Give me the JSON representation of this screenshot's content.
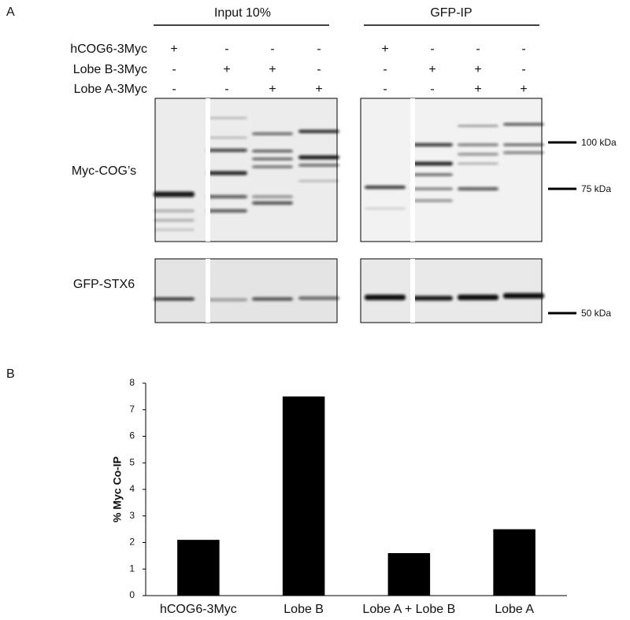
{
  "panel_a": {
    "label": "A",
    "groups": [
      "Input 10%",
      "GFP-IP"
    ],
    "rows": [
      {
        "label": "hCOG6-3Myc",
        "signs": [
          "+",
          "-",
          "-",
          "-",
          "+",
          "-",
          "-",
          "-"
        ]
      },
      {
        "label": "Lobe B-3Myc",
        "signs": [
          "-",
          "+",
          "+",
          "-",
          "-",
          "+",
          "+",
          "-"
        ]
      },
      {
        "label": "Lobe A-3Myc",
        "signs": [
          "-",
          "-",
          "+",
          "+",
          "-",
          "-",
          "+",
          "+"
        ]
      }
    ],
    "blots": [
      "Myc-COG’s",
      "GFP-STX6"
    ],
    "markers": [
      "100 kDa",
      "75 kDa",
      "50 kDa"
    ]
  },
  "panel_b_label": "B",
  "chart_data": {
    "type": "bar",
    "y_label": "% Myc Co-IP",
    "categories": [
      "hCOG6-3Myc",
      "Lobe B",
      "Lobe A + Lobe B",
      "Lobe A"
    ],
    "values": [
      2.1,
      7.5,
      1.6,
      2.5
    ],
    "color": "#000000",
    "ylim": [
      0,
      8
    ],
    "yticks": [
      0,
      1,
      2,
      3,
      4,
      5,
      6,
      7,
      8
    ]
  }
}
